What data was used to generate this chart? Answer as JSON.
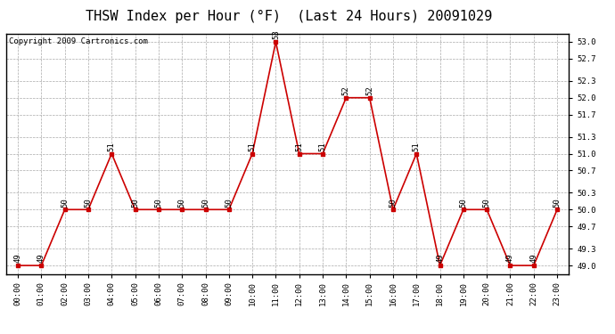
{
  "title": "THSW Index per Hour (°F)  (Last 24 Hours) 20091029",
  "copyright": "Copyright 2009 Cartronics.com",
  "hours": [
    "00:00",
    "01:00",
    "02:00",
    "03:00",
    "04:00",
    "05:00",
    "06:00",
    "07:00",
    "08:00",
    "09:00",
    "10:00",
    "11:00",
    "12:00",
    "13:00",
    "14:00",
    "15:00",
    "16:00",
    "17:00",
    "18:00",
    "19:00",
    "20:00",
    "21:00",
    "22:00",
    "23:00"
  ],
  "values": [
    49,
    49,
    50,
    50,
    51,
    50,
    50,
    50,
    50,
    50,
    51,
    53,
    51,
    51,
    52,
    52,
    50,
    51,
    49,
    50,
    50,
    49,
    49,
    50
  ],
  "ylim_min": 48.85,
  "ylim_max": 53.15,
  "yticks": [
    49.0,
    49.3,
    49.7,
    50.0,
    50.3,
    50.7,
    51.0,
    51.3,
    51.7,
    52.0,
    52.3,
    52.7,
    53.0
  ],
  "line_color": "#cc0000",
  "marker_color": "#cc0000",
  "bg_color": "#ffffff",
  "plot_bg_color": "#ffffff",
  "grid_color": "#aaaaaa",
  "title_fontsize": 11,
  "copyright_fontsize": 6.5,
  "label_fontsize": 6.5,
  "tick_fontsize": 6.5
}
